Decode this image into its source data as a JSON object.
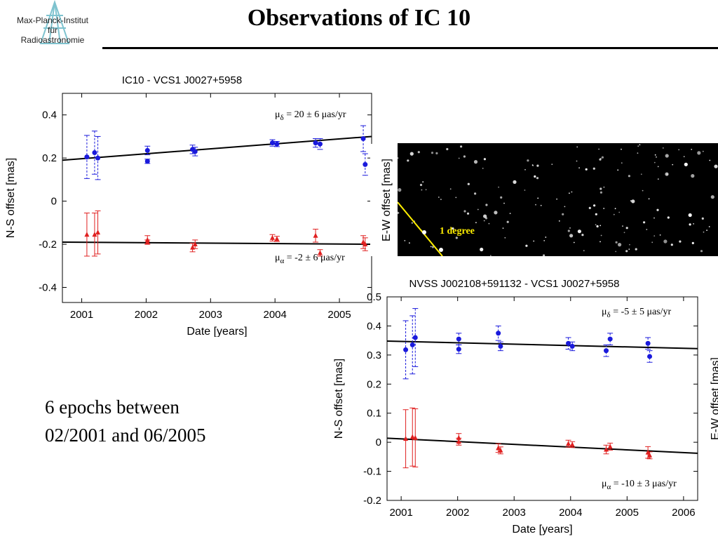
{
  "slide": {
    "title": "Observations of IC 10",
    "logo": {
      "line1": "Max-Planck-Institut",
      "line2": "für",
      "line3": "Radioastronomie"
    },
    "epochs_text": {
      "line1": "6 epochs between",
      "line2": "02/2001 and 06/2005"
    },
    "sky_image": {
      "scale_label": "1 degree",
      "side_label": "E-W offset [mas]"
    }
  },
  "colors": {
    "dec_series": "#1a1adc",
    "ra_series": "#e02020",
    "fit_line": "#000000",
    "scale_bar": "#ffee00"
  },
  "chart_data": [
    {
      "type": "scatter",
      "title": "IC10 - VCS1 J0027+5958",
      "xlabel": "Date [years]",
      "ylabel": "N-S offset [mas]",
      "xlim": [
        2000.7,
        2005.5
      ],
      "ylim": [
        -0.47,
        0.5
      ],
      "xticks": [
        2001,
        2002,
        2003,
        2004,
        2005
      ],
      "xtick_labels": [
        "2001",
        "2002",
        "2003",
        "2004",
        "2005"
      ],
      "yticks": [
        -0.4,
        -0.2,
        0,
        0.2,
        0.4
      ],
      "ytick_labels": [
        "-0.4",
        "-0.2",
        "0",
        "0.2",
        "0.4"
      ],
      "grid": false,
      "series": [
        {
          "marker": "circle",
          "color": "#1a1adc",
          "points": [
            {
              "x": 2001.08,
              "y": 0.205,
              "err": 0.1
            },
            {
              "x": 2001.2,
              "y": 0.225,
              "err": 0.1
            },
            {
              "x": 2001.25,
              "y": 0.2,
              "err": 0.1
            },
            {
              "x": 2002.02,
              "y": 0.235,
              "err": 0.02
            },
            {
              "x": 2002.02,
              "y": 0.185,
              "err": 0.01
            },
            {
              "x": 2002.72,
              "y": 0.24,
              "err": 0.02
            },
            {
              "x": 2002.76,
              "y": 0.23,
              "err": 0.02
            },
            {
              "x": 2003.96,
              "y": 0.27,
              "err": 0.015
            },
            {
              "x": 2004.03,
              "y": 0.265,
              "err": 0.012
            },
            {
              "x": 2004.63,
              "y": 0.27,
              "err": 0.02
            },
            {
              "x": 2004.7,
              "y": 0.265,
              "err": 0.025
            },
            {
              "x": 2005.37,
              "y": 0.29,
              "err": 0.06
            },
            {
              "x": 2005.4,
              "y": 0.17,
              "err": 0.05
            }
          ],
          "fit": {
            "x": [
              2000.7,
              2005.5
            ],
            "y": [
              0.19,
              0.3
            ]
          },
          "annotation": {
            "prefix": "μ",
            "subscript": "δ",
            "text": " = 20 ± 6 μas/yr"
          }
        },
        {
          "marker": "triangle",
          "color": "#e02020",
          "points": [
            {
              "x": 2001.08,
              "y": -0.155,
              "err": 0.1
            },
            {
              "x": 2001.2,
              "y": -0.155,
              "err": 0.1
            },
            {
              "x": 2001.25,
              "y": -0.145,
              "err": 0.1
            },
            {
              "x": 2002.02,
              "y": -0.18,
              "err": 0.02
            },
            {
              "x": 2002.02,
              "y": -0.19,
              "err": 0.01
            },
            {
              "x": 2002.72,
              "y": -0.215,
              "err": 0.02
            },
            {
              "x": 2002.76,
              "y": -0.2,
              "err": 0.02
            },
            {
              "x": 2003.96,
              "y": -0.17,
              "err": 0.015
            },
            {
              "x": 2004.03,
              "y": -0.175,
              "err": 0.012
            },
            {
              "x": 2004.63,
              "y": -0.16,
              "err": 0.03
            },
            {
              "x": 2004.7,
              "y": -0.24,
              "err": 0.015
            },
            {
              "x": 2005.37,
              "y": -0.19,
              "err": 0.03
            },
            {
              "x": 2005.4,
              "y": -0.2,
              "err": 0.03
            }
          ],
          "fit": {
            "x": [
              2000.7,
              2005.5
            ],
            "y": [
              -0.19,
              -0.2
            ]
          },
          "annotation": {
            "prefix": "μ",
            "subscript": "α",
            "text": " = -2 ± 6 μas/yr"
          }
        }
      ]
    },
    {
      "type": "scatter",
      "title": "NVSS J002108+591132 - VCS1 J0027+5958",
      "xlabel": "Date [years]",
      "ylabel": "N-S offset [mas]",
      "ylabel_right": "E-W offset [mas]",
      "xlim": [
        2000.75,
        2006.25
      ],
      "ylim": [
        -0.2,
        0.5
      ],
      "xticks": [
        2001,
        2002,
        2003,
        2004,
        2005,
        2006
      ],
      "xtick_labels": [
        "2001",
        "2002",
        "2003",
        "2004",
        "2005",
        "2006"
      ],
      "yticks": [
        -0.2,
        -0.1,
        0,
        0.1,
        0.2,
        0.3,
        0.4,
        0.5
      ],
      "ytick_labels": [
        "-0.2",
        "-0.1",
        "0",
        "0.1",
        "0.2",
        "0.3",
        "0.4",
        "0.5"
      ],
      "grid": false,
      "series": [
        {
          "marker": "circle",
          "color": "#1a1adc",
          "points": [
            {
              "x": 2001.08,
              "y": 0.318,
              "err": 0.1
            },
            {
              "x": 2001.2,
              "y": 0.335,
              "err": 0.1
            },
            {
              "x": 2001.25,
              "y": 0.36,
              "err": 0.1
            },
            {
              "x": 2002.02,
              "y": 0.355,
              "err": 0.02
            },
            {
              "x": 2002.02,
              "y": 0.32,
              "err": 0.015
            },
            {
              "x": 2002.72,
              "y": 0.375,
              "err": 0.025
            },
            {
              "x": 2002.76,
              "y": 0.33,
              "err": 0.015
            },
            {
              "x": 2003.96,
              "y": 0.34,
              "err": 0.02
            },
            {
              "x": 2004.03,
              "y": 0.33,
              "err": 0.015
            },
            {
              "x": 2004.63,
              "y": 0.315,
              "err": 0.02
            },
            {
              "x": 2004.7,
              "y": 0.355,
              "err": 0.02
            },
            {
              "x": 2005.37,
              "y": 0.34,
              "err": 0.02
            },
            {
              "x": 2005.4,
              "y": 0.295,
              "err": 0.02
            }
          ],
          "fit": {
            "x": [
              2000.75,
              2006.25
            ],
            "y": [
              0.348,
              0.322
            ]
          },
          "annotation": {
            "prefix": "μ",
            "subscript": "δ",
            "text": " = -5 ± 5 μas/yr"
          }
        },
        {
          "marker": "triangle",
          "color": "#e02020",
          "points": [
            {
              "x": 2001.08,
              "y": 0.012,
              "err": 0.1
            },
            {
              "x": 2001.2,
              "y": 0.018,
              "err": 0.1
            },
            {
              "x": 2001.25,
              "y": 0.015,
              "err": 0.1
            },
            {
              "x": 2002.02,
              "y": 0.015,
              "err": 0.015
            },
            {
              "x": 2002.02,
              "y": 0.002,
              "err": 0.012
            },
            {
              "x": 2002.72,
              "y": -0.02,
              "err": 0.015
            },
            {
              "x": 2002.76,
              "y": -0.028,
              "err": 0.012
            },
            {
              "x": 2003.96,
              "y": -0.005,
              "err": 0.012
            },
            {
              "x": 2004.03,
              "y": -0.008,
              "err": 0.01
            },
            {
              "x": 2004.63,
              "y": -0.025,
              "err": 0.015
            },
            {
              "x": 2004.7,
              "y": -0.015,
              "err": 0.012
            },
            {
              "x": 2005.37,
              "y": -0.035,
              "err": 0.02
            },
            {
              "x": 2005.4,
              "y": -0.045,
              "err": 0.012
            }
          ],
          "fit": {
            "x": [
              2000.75,
              2006.25
            ],
            "y": [
              0.014,
              -0.038
            ]
          },
          "annotation": {
            "prefix": "μ",
            "subscript": "α",
            "text": " = -10 ± 3 μas/yr"
          }
        }
      ]
    }
  ]
}
